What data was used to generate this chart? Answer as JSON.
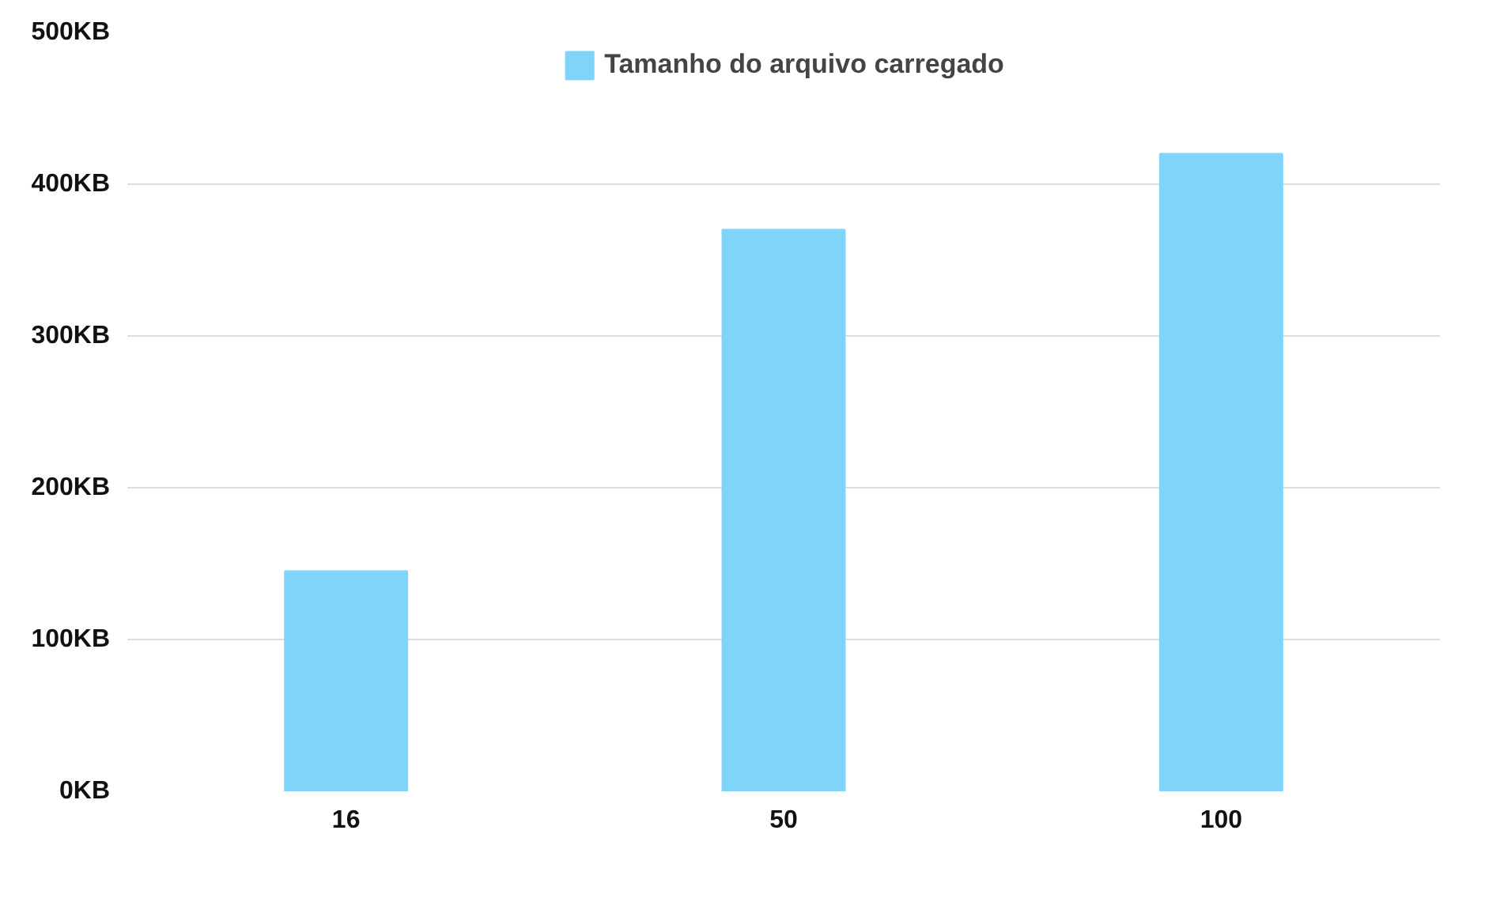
{
  "chart_data": {
    "type": "bar",
    "categories": [
      "16",
      "50",
      "100"
    ],
    "series": [
      {
        "name": "Tamanho do arquivo carregado",
        "color": "#80d4fa",
        "values": [
          145,
          370,
          420
        ]
      }
    ],
    "ylim": [
      0,
      500
    ],
    "yticks": [
      {
        "value": 0,
        "label": "0KB"
      },
      {
        "value": 100,
        "label": "100KB"
      },
      {
        "value": 200,
        "label": "200KB"
      },
      {
        "value": 300,
        "label": "300KB"
      },
      {
        "value": 400,
        "label": "400KB"
      },
      {
        "value": 500,
        "label": "500KB"
      }
    ],
    "grid": "y",
    "legend": "top"
  }
}
